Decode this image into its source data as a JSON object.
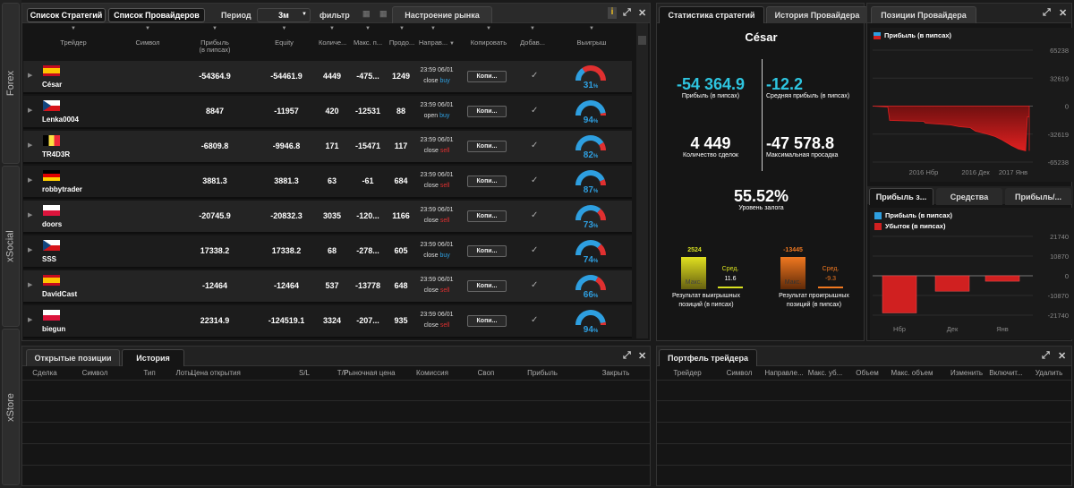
{
  "side_tabs": [
    "Forex",
    "xSocial",
    "xStore"
  ],
  "top": {
    "btn_strategies": "Список Стратегий",
    "btn_providers": "Список Провайдеров",
    "period_label": "Период",
    "period_value": "3м",
    "filter_label": "фильтр",
    "market_tab": "Настроение рынка"
  },
  "columns": [
    {
      "l": "Трейдер",
      "x": 54,
      "w": 56
    },
    {
      "l": "Символ",
      "x": 140,
      "w": 50
    },
    {
      "l": "Прибыль\n(в пипсах)",
      "x": 210,
      "w": 60
    },
    {
      "l": "Equity",
      "x": 290,
      "w": 55
    },
    {
      "l": "Количе...",
      "x": 356,
      "w": 30
    },
    {
      "l": "Макс. п...",
      "x": 393,
      "w": 36
    },
    {
      "l": "Продо...",
      "x": 434,
      "w": 30
    },
    {
      "l": "Направ...",
      "x": 466,
      "w": 36
    },
    {
      "l": "Копировать",
      "x": 518,
      "w": 56
    },
    {
      "l": "Добав...",
      "x": 578,
      "w": 34
    },
    {
      "l": "Выигрыш",
      "x": 636,
      "w": 50
    }
  ],
  "traders": [
    {
      "name": "César",
      "flag": "es",
      "profit": "-54364.9",
      "equity": "-54461.9",
      "count": "4449",
      "max": "-475...",
      "dur": "1249",
      "time": "23:59 06/01",
      "act": "close",
      "dir": "buy",
      "pct": "31",
      "win": 0.31
    },
    {
      "name": "Lenka0004",
      "flag": "cz",
      "profit": "8847",
      "equity": "-11957",
      "count": "420",
      "max": "-12531",
      "dur": "88",
      "time": "23:59 06/01",
      "act": "open",
      "dir": "buy",
      "pct": "94",
      "win": 0.94
    },
    {
      "name": "TR4D3R",
      "flag": "be",
      "profit": "-6809.8",
      "equity": "-9946.8",
      "count": "171",
      "max": "-15471",
      "dur": "117",
      "time": "23:59 06/01",
      "act": "close",
      "dir": "sell",
      "pct": "82",
      "win": 0.82
    },
    {
      "name": "robbytrader",
      "flag": "de",
      "profit": "3881.3",
      "equity": "3881.3",
      "count": "63",
      "max": "-61",
      "dur": "684",
      "time": "23:59 06/01",
      "act": "close",
      "dir": "sell",
      "pct": "87",
      "win": 0.87
    },
    {
      "name": "doors",
      "flag": "pl",
      "profit": "-20745.9",
      "equity": "-20832.3",
      "count": "3035",
      "max": "-120...",
      "dur": "1166",
      "time": "23:59 06/01",
      "act": "close",
      "dir": "sell",
      "pct": "73",
      "win": 0.73
    },
    {
      "name": "SSS",
      "flag": "cz",
      "profit": "17338.2",
      "equity": "17338.2",
      "count": "68",
      "max": "-278...",
      "dur": "605",
      "time": "23:59 06/01",
      "act": "close",
      "dir": "buy",
      "pct": "74",
      "win": 0.74
    },
    {
      "name": "DavidCast",
      "flag": "es",
      "profit": "-12464",
      "equity": "-12464",
      "count": "537",
      "max": "-13778",
      "dur": "648",
      "time": "23:59 06/01",
      "act": "close",
      "dir": "sell",
      "pct": "66",
      "win": 0.66
    },
    {
      "name": "biegun",
      "flag": "pl",
      "profit": "22314.9",
      "equity": "-124519.1",
      "count": "3324",
      "max": "-207...",
      "dur": "935",
      "time": "23:59 06/01",
      "act": "close",
      "dir": "sell",
      "pct": "94",
      "win": 0.94
    }
  ],
  "copy_label": "Копи...",
  "check_mark": "✓",
  "right_tabs": [
    "Статистика стратегий",
    "История Провайдера",
    "Позиции Провайдера"
  ],
  "stats": {
    "name": "César",
    "profit": "-54 364.9",
    "profit_lbl": "Прибыль (в пипсах)",
    "avg": "-12.2",
    "avg_lbl": "Средняя прибыль (в пипсах)",
    "deals": "4 449",
    "deals_lbl": "Количество сделок",
    "dd": "-47 578.8",
    "dd_lbl": "Максимальная просадка",
    "margin": "55.52%",
    "margin_lbl": "Уровень залога",
    "win_max": "2524",
    "win_max_lbl": "Макс.",
    "win_avg_lbl": "Сред.",
    "win_avg": "11.6",
    "win_lbl": "Результат выигрышных\nпозиций (в пипсах)",
    "loss_max": "-13445",
    "loss_max_lbl": "Макс.",
    "loss_avg_lbl": "Сред.",
    "loss_avg": "-9.3",
    "loss_lbl": "Результат проигрышных\nпозиций (в пипсах)"
  },
  "chart_data": [
    {
      "type": "area",
      "legend": "Прибыль (в пипсах)",
      "yticks": [
        "65238",
        "32619",
        "0",
        "-32619",
        "-65238"
      ],
      "xticks": [
        "2016 Нбр",
        "2016 Дек",
        "2017 Янв"
      ],
      "ylim": [
        -65238,
        65238
      ]
    },
    {
      "type": "bar",
      "legend": [
        "Прибыль (в пипсах)",
        "Убыток (в пипсах)"
      ],
      "categories": [
        "Нбр",
        "Дек",
        "Янв"
      ],
      "values": [
        -20500,
        -8500,
        -3000
      ],
      "yticks": [
        "21740",
        "10870",
        "0",
        "-10870",
        "-21740"
      ],
      "ylim": [
        -21740,
        21740
      ]
    }
  ],
  "chart_tabs": [
    "Прибыль з...",
    "Средства",
    "Прибыль/..."
  ],
  "bottom_tabs": [
    "Открытые позиции",
    "История"
  ],
  "bottom_cols": [
    "Сделка",
    "Символ",
    "Тип",
    "Лоты",
    "Цена открытия",
    "S/L",
    "T/P",
    "Рыночная цена",
    "Комиссия",
    "Своп",
    "Прибыль",
    "Закрыть"
  ],
  "portfolio_tab": "Портфель трейдера",
  "portfolio_cols": [
    "Трейдер",
    "Символ",
    "Направле...",
    "Макс. уб...",
    "Объем",
    "Макс. объем",
    "Изменить",
    "Включит...",
    "Удалить"
  ],
  "icons": {
    "info": "i",
    "expand": "⤢",
    "close": "✕"
  }
}
